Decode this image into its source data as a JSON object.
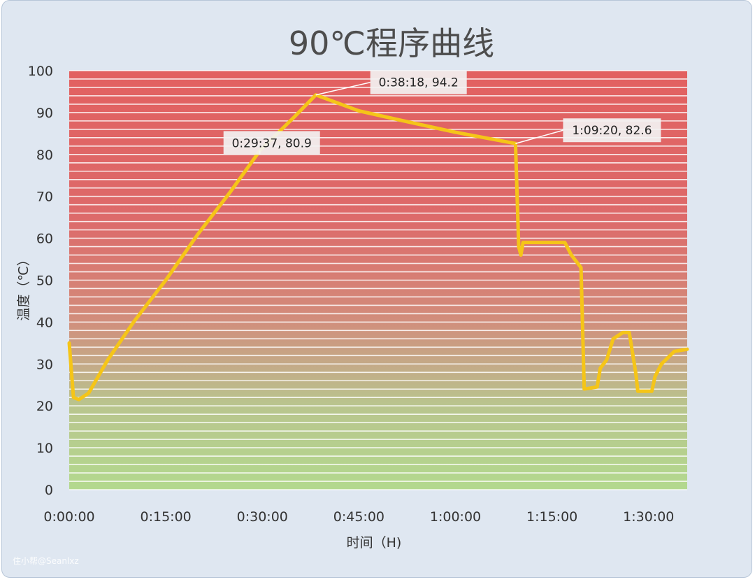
{
  "chart_data": {
    "type": "line",
    "title": "90℃程序曲线",
    "xlabel": "时间（H)",
    "ylabel": "温度（℃）",
    "x_unit": "h:mm:ss",
    "xlim": [
      "0:00:00",
      "1:36:00"
    ],
    "ylim": [
      0,
      100
    ],
    "y_ticks": [
      0,
      10,
      20,
      30,
      40,
      50,
      60,
      70,
      80,
      90,
      100
    ],
    "x_ticks": [
      "0:00:00",
      "0:15:00",
      "0:30:00",
      "0:45:00",
      "1:00:00",
      "1:15:00",
      "1:30:00"
    ],
    "grid": "horizontal stripes",
    "legend": "none",
    "background_gradient": [
      "#e26060",
      "#b3d98e"
    ],
    "series": [
      {
        "color": "#f5c518",
        "points": [
          [
            "0:00:00",
            35
          ],
          [
            "0:00:40",
            22
          ],
          [
            "0:01:30",
            21.5
          ],
          [
            "0:03:00",
            23
          ],
          [
            "0:06:00",
            31
          ],
          [
            "0:10:00",
            40
          ],
          [
            "0:15:00",
            50
          ],
          [
            "0:20:00",
            61
          ],
          [
            "0:25:00",
            71
          ],
          [
            "0:29:37",
            80.9
          ],
          [
            "0:35:00",
            89
          ],
          [
            "0:38:18",
            94.2
          ],
          [
            "0:45:00",
            90.4
          ],
          [
            "0:52:00",
            88
          ],
          [
            "1:00:00",
            85.3
          ],
          [
            "1:09:20",
            82.6
          ],
          [
            "1:09:50",
            58
          ],
          [
            "1:10:10",
            56
          ],
          [
            "1:10:30",
            59
          ],
          [
            "1:17:00",
            59
          ],
          [
            "1:18:00",
            56
          ],
          [
            "1:19:30",
            53
          ],
          [
            "1:20:00",
            24
          ],
          [
            "1:22:00",
            24.5
          ],
          [
            "1:22:30",
            29
          ],
          [
            "1:23:30",
            31
          ],
          [
            "1:24:30",
            36
          ],
          [
            "1:26:00",
            37.5
          ],
          [
            "1:27:00",
            37.5
          ],
          [
            "1:28:00",
            28
          ],
          [
            "1:28:20",
            23.5
          ],
          [
            "1:30:30",
            23.5
          ],
          [
            "1:31:00",
            27
          ],
          [
            "1:32:00",
            30
          ],
          [
            "1:34:00",
            33
          ],
          [
            "1:36:00",
            33.5
          ]
        ]
      }
    ],
    "annotations": [
      {
        "x": "0:29:37",
        "y": 80.9,
        "text": "0:29:37, 80.9"
      },
      {
        "x": "0:38:18",
        "y": 94.2,
        "text": "0:38:18, 94.2"
      },
      {
        "x": "1:09:20",
        "y": 82.6,
        "text": "1:09:20, 82.6"
      }
    ]
  },
  "watermark": "住小帮@Seanlxz"
}
